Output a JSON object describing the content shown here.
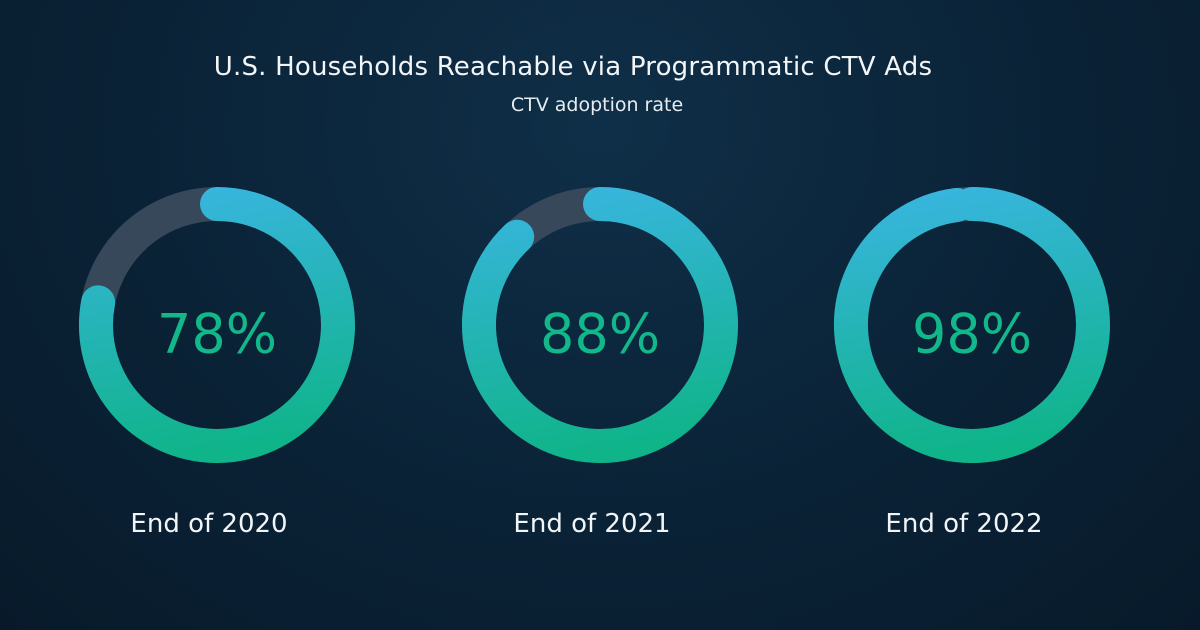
{
  "chart_data": {
    "type": "pie",
    "title": "U.S. Households Reachable via Programmatic CTV Ads",
    "subtitle": "CTV adoption rate",
    "categories": [
      "End of 2020",
      "End of 2021",
      "End of 2022"
    ],
    "values": [
      78,
      88,
      98
    ],
    "value_labels": [
      "78%",
      "88%",
      "98%"
    ],
    "colors": {
      "track": "#37485a",
      "gradient_start": "#3ab5e2",
      "gradient_end": "#0fb489",
      "value_text": "#12b78a"
    }
  }
}
